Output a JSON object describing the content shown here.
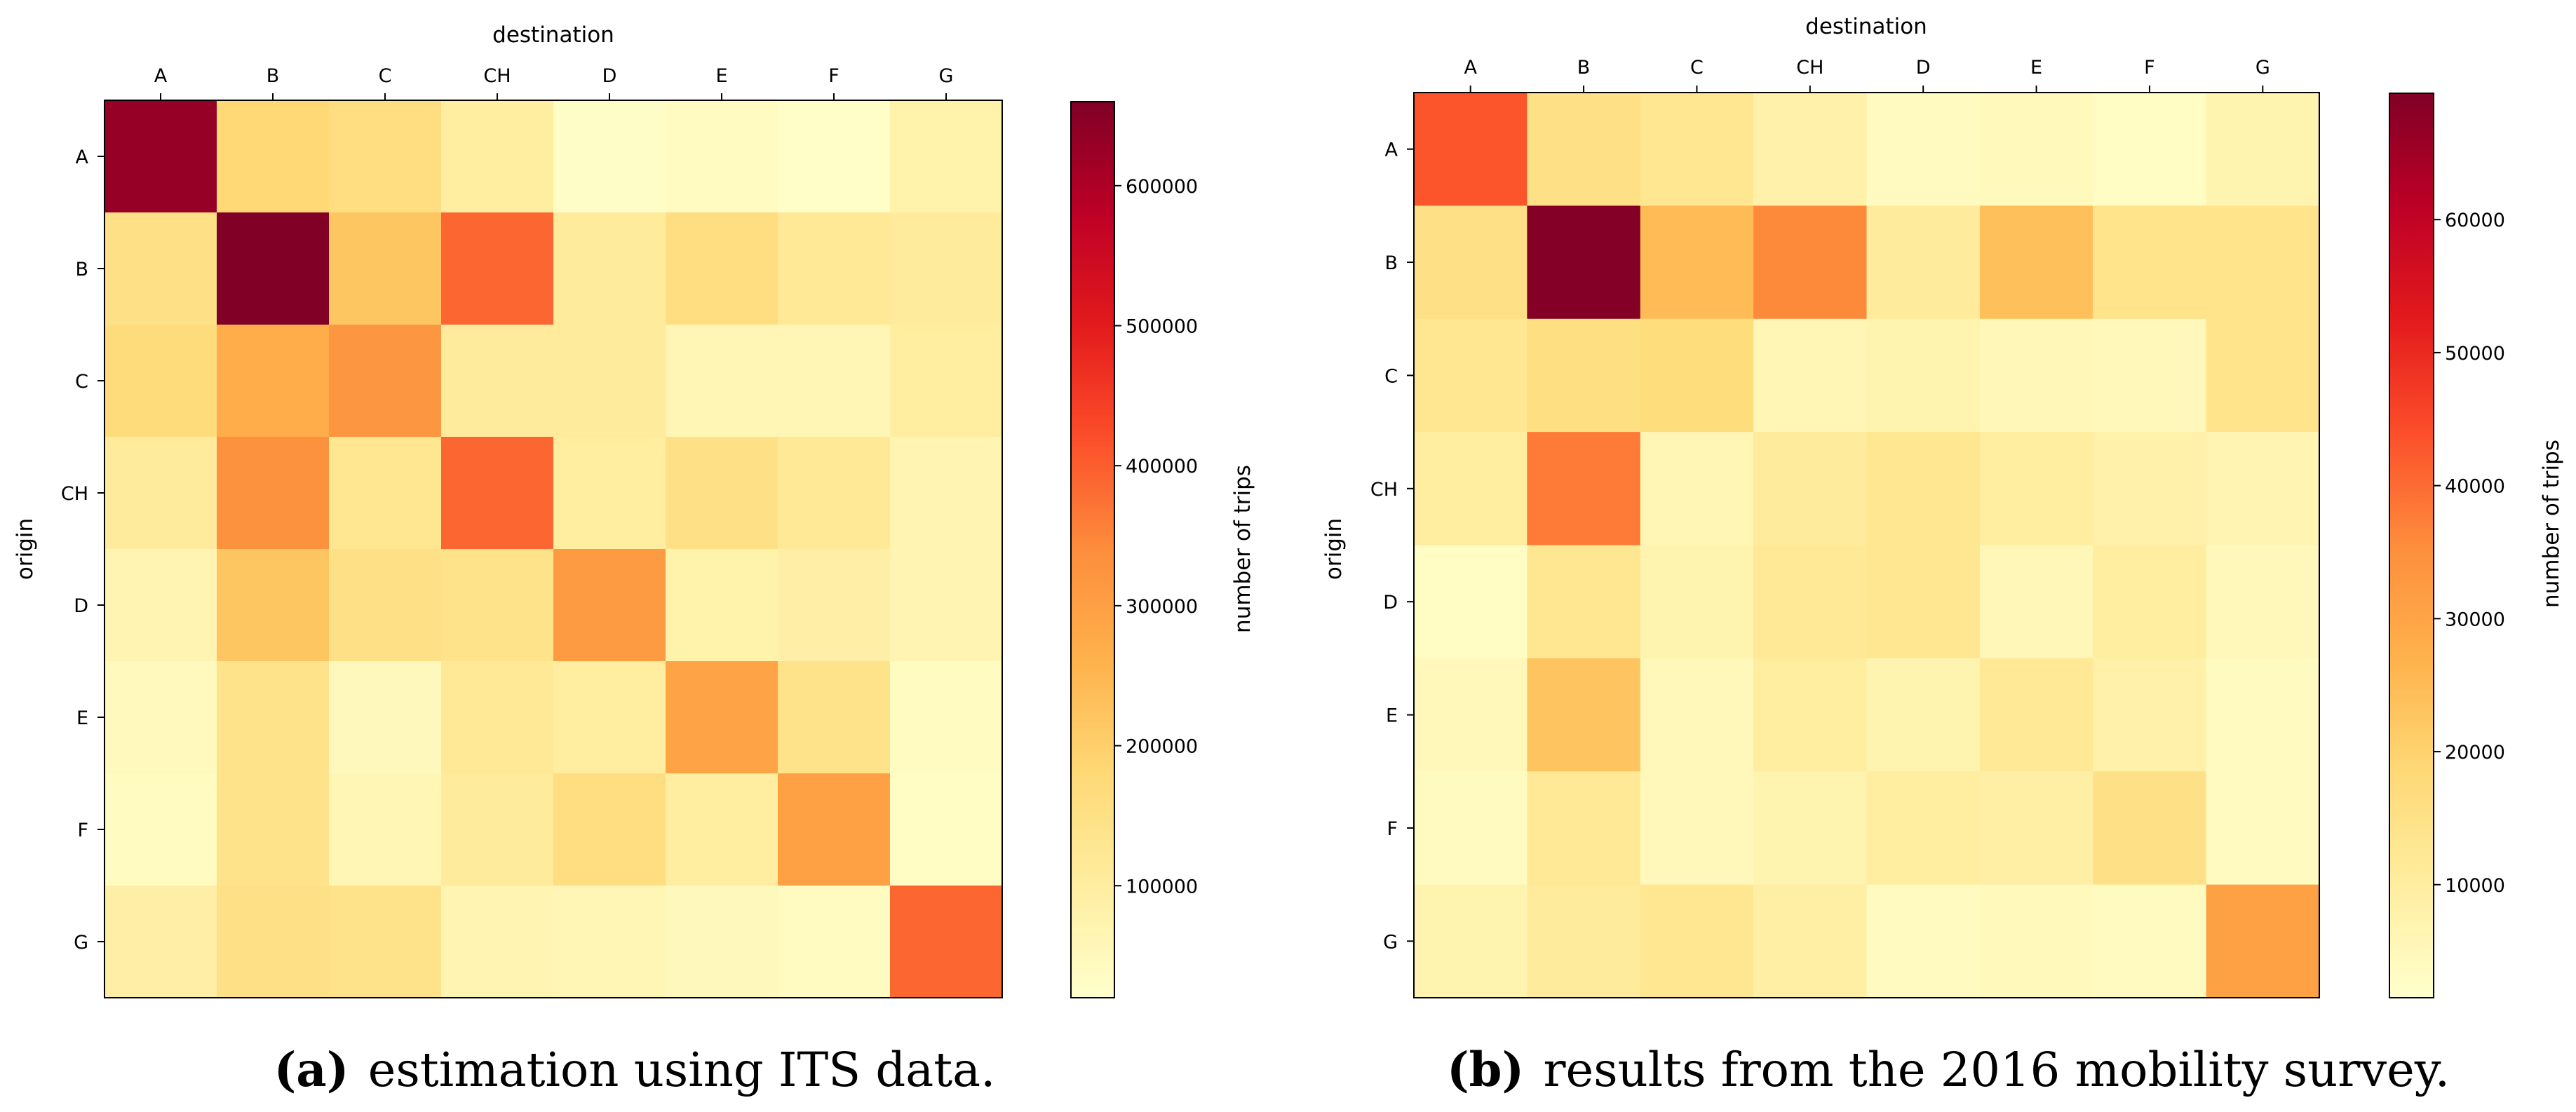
{
  "chart_data": [
    {
      "type": "heatmap",
      "panel_letter": "(a)",
      "caption": "estimation using ITS data.",
      "xlabel": "destination",
      "ylabel": "origin",
      "x_categories": [
        "A",
        "B",
        "C",
        "CH",
        "D",
        "E",
        "F",
        "G"
      ],
      "y_categories": [
        "A",
        "B",
        "C",
        "CH",
        "D",
        "E",
        "F",
        "G"
      ],
      "values": [
        [
          630000,
          180000,
          160000,
          100000,
          30000,
          40000,
          25000,
          80000
        ],
        [
          150000,
          660000,
          220000,
          390000,
          110000,
          160000,
          120000,
          110000
        ],
        [
          170000,
          270000,
          320000,
          110000,
          110000,
          60000,
          60000,
          100000
        ],
        [
          110000,
          330000,
          130000,
          390000,
          100000,
          150000,
          120000,
          70000
        ],
        [
          70000,
          220000,
          150000,
          140000,
          310000,
          80000,
          90000,
          70000
        ],
        [
          45000,
          140000,
          50000,
          120000,
          100000,
          290000,
          140000,
          40000
        ],
        [
          40000,
          140000,
          60000,
          110000,
          160000,
          100000,
          300000,
          35000
        ],
        [
          90000,
          150000,
          140000,
          70000,
          60000,
          50000,
          40000,
          390000
        ]
      ],
      "colorbar": {
        "label": "number of trips",
        "min": 20000,
        "max": 660000,
        "ticks": [
          100000,
          200000,
          300000,
          400000,
          500000,
          600000
        ],
        "tick_labels": [
          "100000",
          "200000",
          "300000",
          "400000",
          "500000",
          "600000"
        ]
      },
      "colormap": "YlOrRd"
    },
    {
      "type": "heatmap",
      "panel_letter": "(b)",
      "caption": "results from the 2016 mobility survey.",
      "xlabel": "destination",
      "ylabel": "origin",
      "x_categories": [
        "A",
        "B",
        "C",
        "CH",
        "D",
        "E",
        "F",
        "G"
      ],
      "y_categories": [
        "A",
        "B",
        "C",
        "CH",
        "D",
        "E",
        "F",
        "G"
      ],
      "values": [
        [
          43000,
          15000,
          13000,
          8000,
          4000,
          4500,
          3000,
          7000
        ],
        [
          15000,
          69000,
          25000,
          36000,
          11000,
          24000,
          14000,
          14000
        ],
        [
          13000,
          16000,
          17000,
          6000,
          7000,
          5500,
          5000,
          14000
        ],
        [
          10000,
          38000,
          6000,
          11000,
          13000,
          10000,
          8000,
          6500
        ],
        [
          3000,
          13000,
          7000,
          12000,
          13000,
          5500,
          10000,
          5000
        ],
        [
          5000,
          23000,
          5000,
          10000,
          7000,
          12000,
          8000,
          4000
        ],
        [
          4000,
          12000,
          5000,
          7000,
          10000,
          9000,
          15000,
          4000
        ],
        [
          7000,
          11000,
          13000,
          9000,
          4000,
          4500,
          4000,
          31000
        ]
      ],
      "colorbar": {
        "label": "number of trips",
        "min": 1500,
        "max": 69500,
        "ticks": [
          10000,
          20000,
          30000,
          40000,
          50000,
          60000
        ],
        "tick_labels": [
          "10000",
          "20000",
          "30000",
          "40000",
          "50000",
          "60000"
        ]
      },
      "colormap": "YlOrRd"
    }
  ]
}
